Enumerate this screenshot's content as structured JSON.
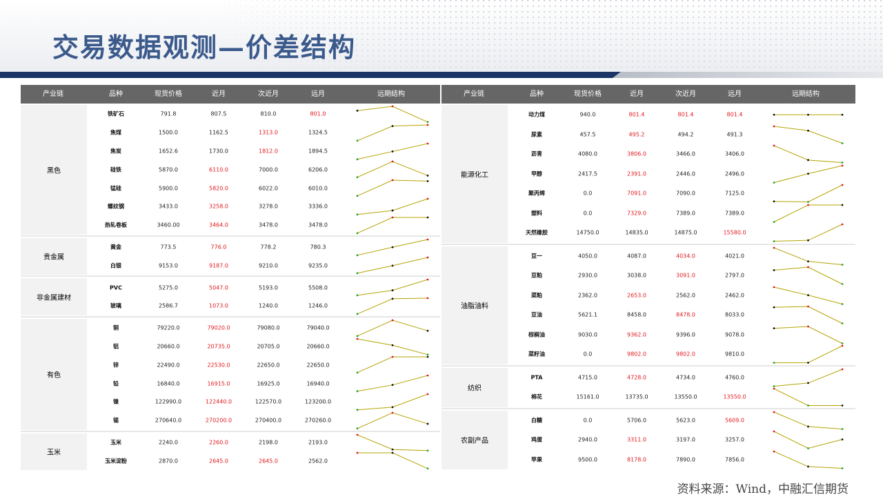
{
  "title": "交易数据观测—价差结构",
  "source": "资料来源：Wind，中融汇信期货",
  "header_labels": [
    "产业链",
    "品种",
    "现货价格",
    "近月",
    "次近月",
    "远月",
    "远期结构"
  ],
  "colors": {
    "header_bg": "#666666",
    "red_text": "#e0191e",
    "spark_line": "#b5a300",
    "marker_red": "#e0191e",
    "marker_green": "#2aa02a",
    "marker_black": "#111111",
    "title": "#3b5a8c",
    "bar": "#1a3566"
  },
  "left_table": {
    "groups": [
      {
        "name": "黑色",
        "rows": [
          {
            "name": "铁矿石",
            "spot": "791.8",
            "near": "807.5",
            "next": "810.0",
            "far": "801.0",
            "red": [
              "far"
            ],
            "curve": [
              807.5,
              810.0,
              801.0
            ]
          },
          {
            "name": "焦煤",
            "spot": "1500.0",
            "near": "1162.5",
            "next": "1313.0",
            "far": "1324.5",
            "red": [
              "next"
            ],
            "curve": [
              1162.5,
              1313.0,
              1324.5
            ]
          },
          {
            "name": "焦炭",
            "spot": "1652.6",
            "near": "1730.0",
            "next": "1812.0",
            "far": "1894.5",
            "red": [
              "next"
            ],
            "curve": [
              1730.0,
              1812.0,
              1894.5
            ]
          },
          {
            "name": "硅铁",
            "spot": "5870.0",
            "near": "6110.0",
            "next": "7000.0",
            "far": "6206.0",
            "red": [
              "near"
            ],
            "curve": [
              6110.0,
              7000.0,
              6206.0
            ]
          },
          {
            "name": "锰硅",
            "spot": "5900.0",
            "near": "5820.0",
            "next": "6022.0",
            "far": "6010.0",
            "red": [
              "near"
            ],
            "curve": [
              5820.0,
              6022.0,
              6010.0
            ]
          },
          {
            "name": "螺纹钢",
            "spot": "3433.0",
            "near": "3258.0",
            "next": "3278.0",
            "far": "3336.0",
            "red": [
              "near"
            ],
            "curve": [
              3258.0,
              3278.0,
              3336.0
            ]
          },
          {
            "name": "热轧卷板",
            "spot": "3460.00",
            "near": "3464.0",
            "next": "3478.0",
            "far": "3478.0",
            "red": [
              "near"
            ],
            "curve": [
              3464.0,
              3478.0,
              3478.0
            ]
          }
        ]
      },
      {
        "name": "贵金属",
        "rows": [
          {
            "name": "黄金",
            "spot": "773.5",
            "near": "776.0",
            "next": "778.2",
            "far": "780.3",
            "red": [
              "near"
            ],
            "curve": [
              776.0,
              778.2,
              780.3
            ]
          },
          {
            "name": "白银",
            "spot": "9153.0",
            "near": "9187.0",
            "next": "9210.0",
            "far": "9235.0",
            "red": [
              "near"
            ],
            "curve": [
              9187.0,
              9210.0,
              9235.0
            ]
          }
        ]
      },
      {
        "name": "非金属建材",
        "rows": [
          {
            "name": "PVC",
            "spot": "5275.0",
            "near": "5047.0",
            "next": "5193.0",
            "far": "5508.0",
            "red": [
              "near"
            ],
            "curve": [
              5047.0,
              5193.0,
              5508.0
            ]
          },
          {
            "name": "玻璃",
            "spot": "2586.7",
            "near": "1073.0",
            "next": "1240.0",
            "far": "1246.0",
            "red": [
              "near"
            ],
            "curve": [
              1073.0,
              1240.0,
              1246.0
            ]
          }
        ]
      },
      {
        "name": "有色",
        "rows": [
          {
            "name": "铜",
            "spot": "79220.0",
            "near": "79020.0",
            "next": "79080.0",
            "far": "79040.0",
            "red": [
              "near"
            ],
            "curve": [
              79020.0,
              79080.0,
              79040.0
            ]
          },
          {
            "name": "铝",
            "spot": "20660.0",
            "near": "20735.0",
            "next": "20705.0",
            "far": "20660.0",
            "red": [
              "near"
            ],
            "curve": [
              20735.0,
              20705.0,
              20660.0
            ]
          },
          {
            "name": "锌",
            "spot": "22490.0",
            "near": "22530.0",
            "next": "22650.0",
            "far": "22650.0",
            "red": [
              "near"
            ],
            "curve": [
              22530.0,
              22650.0,
              22650.0
            ]
          },
          {
            "name": "铅",
            "spot": "16840.0",
            "near": "16915.0",
            "next": "16925.0",
            "far": "16940.0",
            "red": [
              "near"
            ],
            "curve": [
              16915.0,
              16925.0,
              16940.0
            ]
          },
          {
            "name": "镍",
            "spot": "122990.0",
            "near": "122440.0",
            "next": "122570.0",
            "far": "123200.0",
            "red": [
              "near"
            ],
            "curve": [
              122440.0,
              122570.0,
              123200.0
            ]
          },
          {
            "name": "锡",
            "spot": "270640.0",
            "near": "270200.0",
            "next": "270400.0",
            "far": "270260.0",
            "red": [
              "near"
            ],
            "curve": [
              270200.0,
              270400.0,
              270260.0
            ]
          }
        ]
      },
      {
        "name": "玉米",
        "rows": [
          {
            "name": "玉米",
            "spot": "2240.0",
            "near": "2260.0",
            "next": "2198.0",
            "far": "2193.0",
            "red": [
              "near"
            ],
            "curve": [
              2260.0,
              2198.0,
              2193.0
            ]
          },
          {
            "name": "玉米淀粉",
            "spot": "2870.0",
            "near": "2645.0",
            "next": "2645.0",
            "far": "2562.0",
            "red": [
              "near",
              "next"
            ],
            "curve": [
              2645.0,
              2645.0,
              2562.0
            ]
          }
        ]
      }
    ]
  },
  "right_table": {
    "groups": [
      {
        "name": "能源化工",
        "rows": [
          {
            "name": "动力煤",
            "spot": "940.0",
            "near": "801.4",
            "next": "801.4",
            "far": "801.4",
            "red": [
              "near",
              "next",
              "far"
            ],
            "curve": [
              801.4,
              801.4,
              801.4
            ]
          },
          {
            "name": "尿素",
            "spot": "457.5",
            "near": "495.2",
            "next": "494.2",
            "far": "491.3",
            "red": [
              "near"
            ],
            "curve": [
              495.2,
              494.2,
              491.3
            ]
          },
          {
            "name": "沥青",
            "spot": "4080.0",
            "near": "3806.0",
            "next": "3466.0",
            "far": "3406.0",
            "red": [
              "near"
            ],
            "curve": [
              3806.0,
              3466.0,
              3406.0
            ]
          },
          {
            "name": "甲醇",
            "spot": "2417.5",
            "near": "2391.0",
            "next": "2446.0",
            "far": "2496.0",
            "red": [
              "near"
            ],
            "curve": [
              2391.0,
              2446.0,
              2496.0
            ]
          },
          {
            "name": "聚丙烯",
            "spot": "0.0",
            "near": "7091.0",
            "next": "7090.0",
            "far": "7125.0",
            "red": [
              "near"
            ],
            "curve": [
              7091.0,
              7090.0,
              7125.0
            ]
          },
          {
            "name": "塑料",
            "spot": "0.0",
            "near": "7329.0",
            "next": "7389.0",
            "far": "7389.0",
            "red": [
              "near"
            ],
            "curve": [
              7329.0,
              7389.0,
              7389.0
            ]
          },
          {
            "name": "天然橡胶",
            "spot": "14750.0",
            "near": "14835.0",
            "next": "14875.0",
            "far": "15580.0",
            "red": [
              "far"
            ],
            "curve": [
              14835.0,
              14875.0,
              15580.0
            ]
          }
        ]
      },
      {
        "name": "油脂油料",
        "rows": [
          {
            "name": "豆一",
            "spot": "4050.0",
            "near": "4087.0",
            "next": "4034.0",
            "far": "4021.0",
            "red": [
              "next"
            ],
            "curve": [
              4087.0,
              4034.0,
              4021.0
            ]
          },
          {
            "name": "豆粕",
            "spot": "2930.0",
            "near": "3038.0",
            "next": "3091.0",
            "far": "2797.0",
            "red": [
              "next"
            ],
            "curve": [
              3038.0,
              3091.0,
              2797.0
            ]
          },
          {
            "name": "菜粕",
            "spot": "2362.0",
            "near": "2653.0",
            "next": "2562.0",
            "far": "2462.0",
            "red": [
              "near"
            ],
            "curve": [
              2653.0,
              2562.0,
              2462.0
            ]
          },
          {
            "name": "豆油",
            "spot": "5621.1",
            "near": "8458.0",
            "next": "8478.0",
            "far": "8033.0",
            "red": [
              "next"
            ],
            "curve": [
              8458.0,
              8478.0,
              8033.0
            ]
          },
          {
            "name": "棕榈油",
            "spot": "9030.0",
            "near": "9362.0",
            "next": "9396.0",
            "far": "9078.0",
            "red": [
              "near"
            ],
            "curve": [
              9362.0,
              9396.0,
              9078.0
            ]
          },
          {
            "name": "菜籽油",
            "spot": "0.0",
            "near": "9802.0",
            "next": "9802.0",
            "far": "9810.0",
            "red": [
              "near",
              "next"
            ],
            "curve": [
              9802.0,
              9802.0,
              9810.0
            ]
          }
        ]
      },
      {
        "name": "纺织",
        "rows": [
          {
            "name": "PTA",
            "spot": "4715.0",
            "near": "4728.0",
            "next": "4734.0",
            "far": "4760.0",
            "red": [
              "near"
            ],
            "curve": [
              4728.0,
              4734.0,
              4760.0
            ]
          },
          {
            "name": "棉花",
            "spot": "15161.0",
            "near": "13735.0",
            "next": "13550.0",
            "far": "13550.0",
            "red": [
              "far"
            ],
            "curve": [
              13735.0,
              13550.0,
              13550.0
            ]
          }
        ]
      },
      {
        "name": "农副产品",
        "rows": [
          {
            "name": "白糖",
            "spot": "0.0",
            "near": "5706.0",
            "next": "5623.0",
            "far": "5609.0",
            "red": [
              "far"
            ],
            "curve": [
              5706.0,
              5623.0,
              5609.0
            ]
          },
          {
            "name": "鸡蛋",
            "spot": "2940.0",
            "near": "3311.0",
            "next": "3197.0",
            "far": "3257.0",
            "red": [
              "near"
            ],
            "curve": [
              3311.0,
              3197.0,
              3257.0
            ]
          },
          {
            "name": "苹果",
            "spot": "9500.0",
            "near": "8178.0",
            "next": "7890.0",
            "far": "7856.0",
            "red": [
              "near"
            ],
            "curve": [
              8178.0,
              7890.0,
              7856.0
            ]
          }
        ]
      }
    ]
  }
}
